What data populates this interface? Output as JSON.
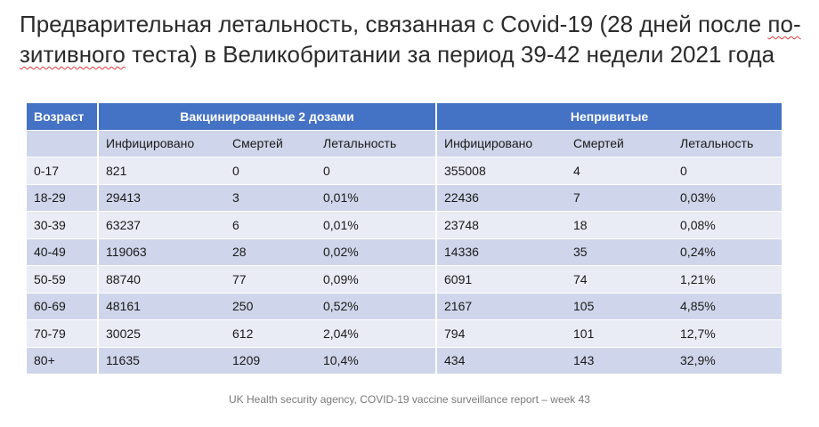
{
  "title": {
    "line1_pre": "Предварительная летальность, связанная с Covid-19 (28 дней после ",
    "line1_underlined": "по-",
    "line2_underlined": "зитивного",
    "line2_post": " теста) в Великобритании за период 39-42 недели 2021 года"
  },
  "table": {
    "age_header": "Возраст",
    "group_vaccinated": "Вакцинированные 2 дозами",
    "group_unvaccinated": "Непривитые",
    "col_infected": "Инфицировано",
    "col_deaths": "Смертей",
    "col_lethality": "Летальность",
    "rows": [
      {
        "age": "0-17",
        "v_inf": "821",
        "v_d": "0",
        "v_l": "0",
        "u_inf": "355008",
        "u_d": "4",
        "u_l": "0"
      },
      {
        "age": "18-29",
        "v_inf": "29413",
        "v_d": "3",
        "v_l": "0,01%",
        "u_inf": "22436",
        "u_d": "7",
        "u_l": "0,03%"
      },
      {
        "age": "30-39",
        "v_inf": "63237",
        "v_d": "6",
        "v_l": "0,01%",
        "u_inf": "23748",
        "u_d": "18",
        "u_l": "0,08%"
      },
      {
        "age": "40-49",
        "v_inf": "119063",
        "v_d": "28",
        "v_l": "0,02%",
        "u_inf": "14336",
        "u_d": "35",
        "u_l": "0,24%"
      },
      {
        "age": "50-59",
        "v_inf": "88740",
        "v_d": "77",
        "v_l": "0,09%",
        "u_inf": "6091",
        "u_d": "74",
        "u_l": "1,21%"
      },
      {
        "age": "60-69",
        "v_inf": "48161",
        "v_d": "250",
        "v_l": "0,52%",
        "u_inf": "2167",
        "u_d": "105",
        "u_l": "4,85%"
      },
      {
        "age": "70-79",
        "v_inf": "30025",
        "v_d": "612",
        "v_l": "2,04%",
        "u_inf": "794",
        "u_d": "101",
        "u_l": "12,7%"
      },
      {
        "age": "80+",
        "v_inf": "11635",
        "v_d": "1209",
        "v_l": "10,4%",
        "u_inf": "434",
        "u_d": "143",
        "u_l": "32,9%"
      }
    ]
  },
  "source": "UK Health security agency, COVID-19 vaccine surveillance report – week 43",
  "colors": {
    "header_blue": "#4472c4",
    "row_light": "#e9ebf5",
    "row_dark": "#cfd5ea"
  }
}
